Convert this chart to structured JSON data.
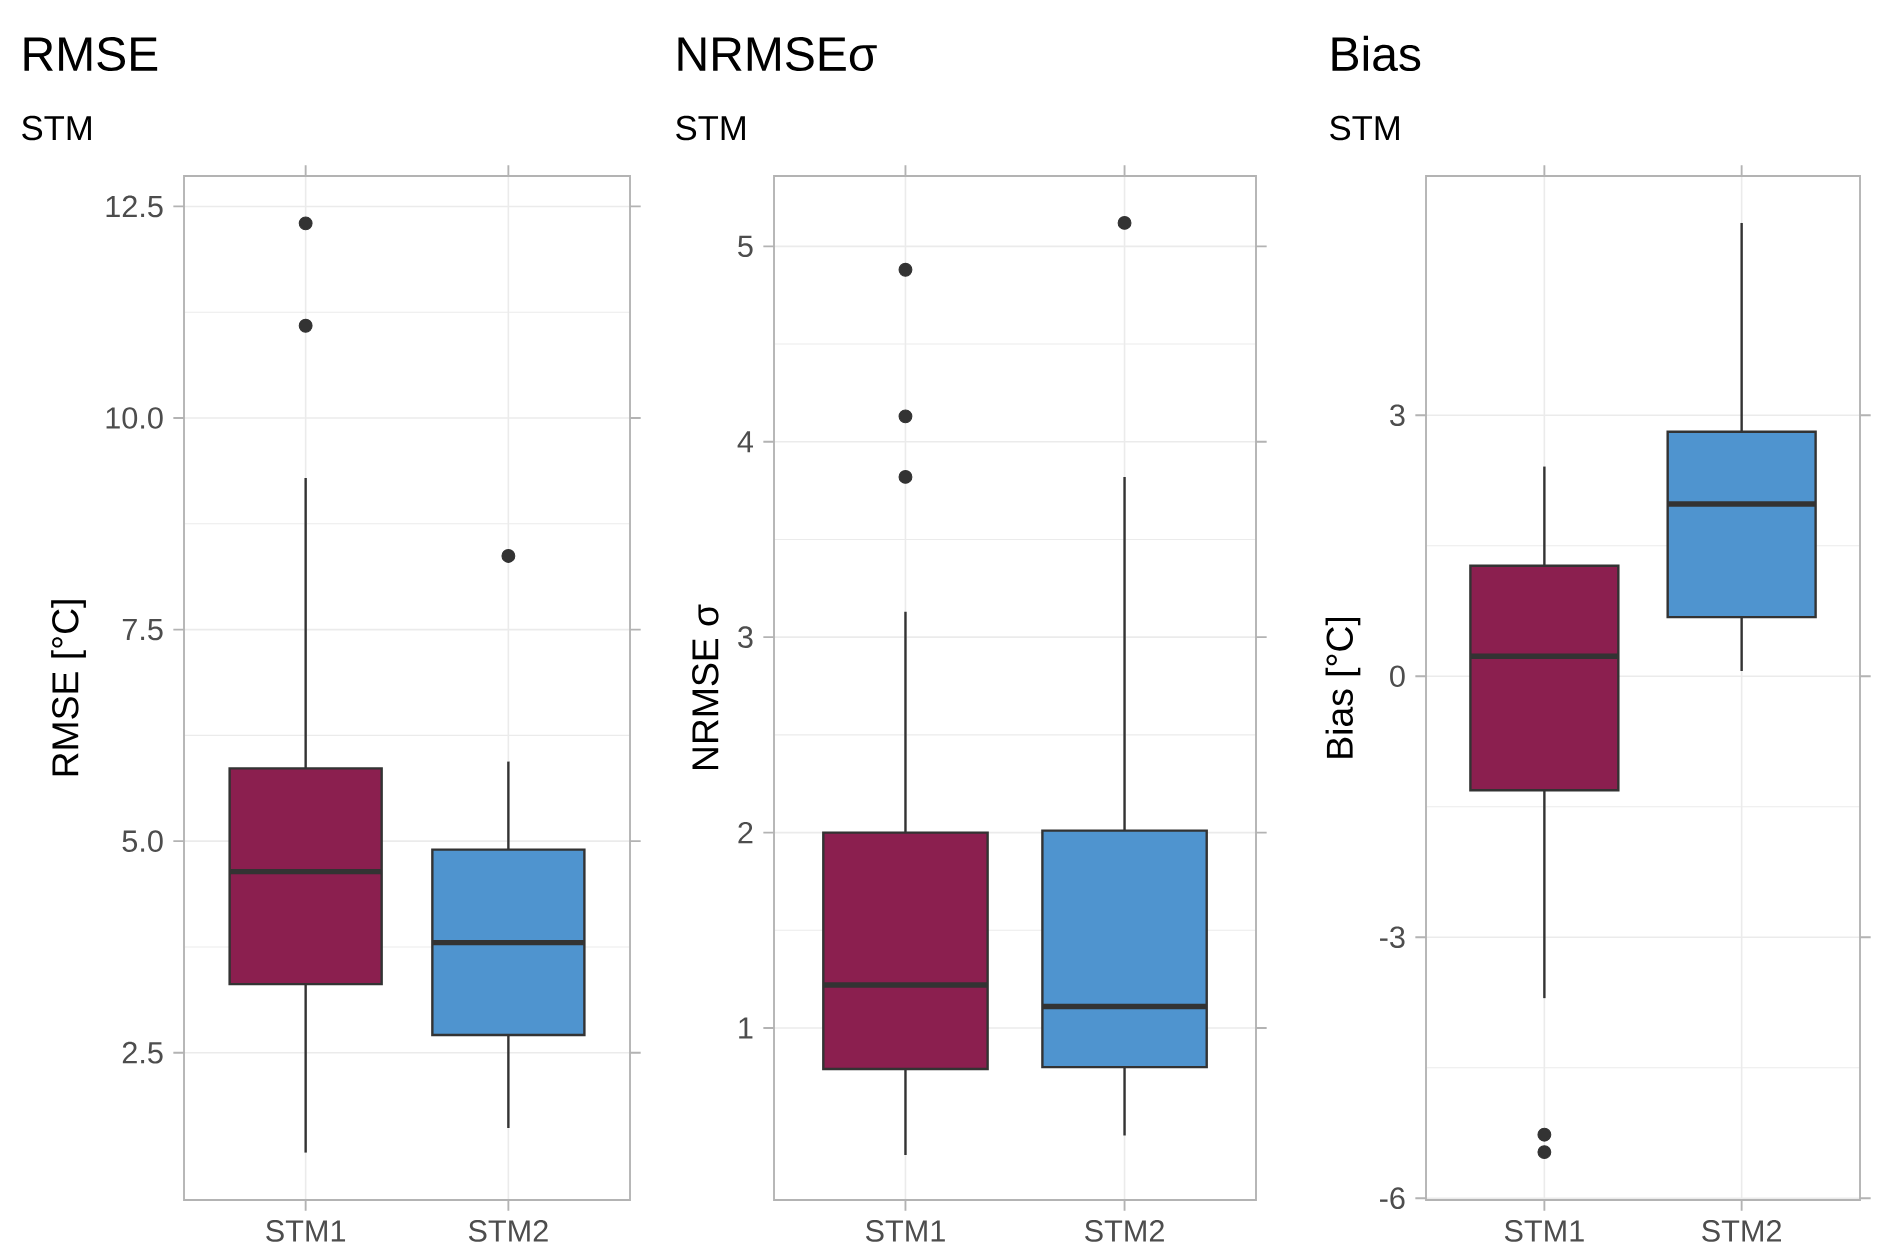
{
  "chart_data": [
    {
      "type": "box",
      "title": "RMSE",
      "subtitle": "STM",
      "ylabel": "RMSE [°C]",
      "categories": [
        "STM1",
        "STM2"
      ],
      "colors": [
        "#8b1f4f",
        "#4f94cf"
      ],
      "boxes": [
        {
          "low": 1.32,
          "q1": 3.31,
          "median": 4.64,
          "q3": 5.86,
          "high": 9.29,
          "outliers": [
            12.3,
            11.09
          ]
        },
        {
          "low": 1.61,
          "q1": 2.71,
          "median": 3.8,
          "q3": 4.9,
          "high": 5.94,
          "outliers": [
            8.37
          ]
        }
      ],
      "ylim": [
        0.76,
        12.86
      ],
      "yticks": [
        2.5,
        {
          "value": 5,
          "label": "5.0"
        },
        7.5,
        {
          "value": 10,
          "label": "10.0"
        },
        12.5
      ],
      "grid": true
    },
    {
      "type": "box",
      "title": "NRMSEσ",
      "subtitle": "STM",
      "ylabel": "NRMSE σ",
      "categories": [
        "STM1",
        "STM2"
      ],
      "colors": [
        "#8b1f4f",
        "#4f94cf"
      ],
      "boxes": [
        {
          "low": 0.35,
          "q1": 0.79,
          "median": 1.22,
          "q3": 2.0,
          "high": 3.13,
          "outliers": [
            4.88,
            4.13,
            3.82
          ]
        },
        {
          "low": 0.45,
          "q1": 0.8,
          "median": 1.11,
          "q3": 2.01,
          "high": 3.82,
          "outliers": [
            5.12
          ]
        }
      ],
      "ylim": [
        0.12,
        5.36
      ],
      "yticks": [
        1,
        2,
        3,
        4,
        5
      ],
      "grid": true
    },
    {
      "type": "box",
      "title": "Bias",
      "subtitle": "STM",
      "ylabel": "Bias [°C]",
      "categories": [
        "STM1",
        "STM2"
      ],
      "colors": [
        "#8b1f4f",
        "#4f94cf"
      ],
      "boxes": [
        {
          "low": -3.7,
          "q1": -1.31,
          "median": 0.23,
          "q3": 1.27,
          "high": 2.41,
          "outliers": [
            -5.27,
            -5.47
          ]
        },
        {
          "low": 0.06,
          "q1": 0.68,
          "median": 1.98,
          "q3": 2.81,
          "high": 5.21
        }
      ],
      "ylim": [
        -6.02,
        5.75
      ],
      "yticks": [
        -6,
        -3,
        0,
        3
      ],
      "grid": true
    }
  ]
}
